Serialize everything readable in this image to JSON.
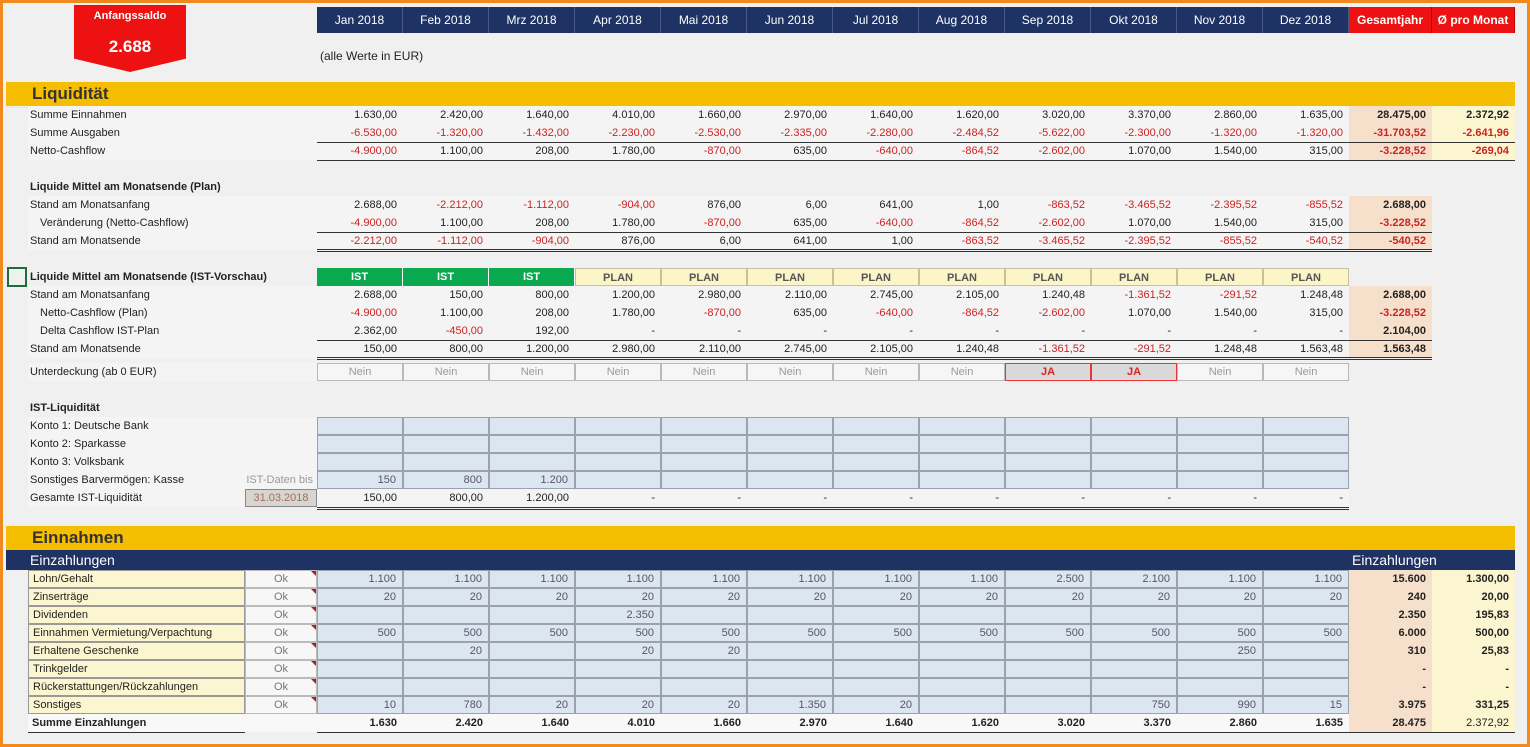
{
  "header": {
    "start_balance_label": "Anfangssaldo",
    "start_balance_value": "2.688",
    "months": [
      "Jan 2018",
      "Feb 2018",
      "Mrz 2018",
      "Apr 2018",
      "Mai 2018",
      "Jun 2018",
      "Jul 2018",
      "Aug 2018",
      "Sep 2018",
      "Okt 2018",
      "Nov 2018",
      "Dez 2018"
    ],
    "total_label": "Gesamtjahr",
    "avg_label": "Ø pro Monat",
    "unit_note": "(alle Werte in EUR)"
  },
  "colors": {
    "accent_orange": "#f08a1e",
    "band_yellow": "#f5be00",
    "navy": "#1f3264",
    "red": "#ee1111",
    "ist_green": "#0aa84f",
    "negative": "#cc2222"
  },
  "liquiditaet": {
    "title": "Liquidität",
    "rows": [
      {
        "label": "Summe Einnahmen",
        "values": [
          "1.630,00",
          "2.420,00",
          "1.640,00",
          "4.010,00",
          "1.660,00",
          "2.970,00",
          "1.640,00",
          "1.620,00",
          "3.020,00",
          "3.370,00",
          "2.860,00",
          "1.635,00"
        ],
        "total": "28.475,00",
        "avg": "2.372,92"
      },
      {
        "label": "Summe Ausgaben",
        "values": [
          "-6.530,00",
          "-1.320,00",
          "-1.432,00",
          "-2.230,00",
          "-2.530,00",
          "-2.335,00",
          "-2.280,00",
          "-2.484,52",
          "-5.622,00",
          "-2.300,00",
          "-1.320,00",
          "-1.320,00"
        ],
        "total": "-31.703,52",
        "avg": "-2.641,96"
      },
      {
        "label": "Netto-Cashflow",
        "values": [
          "-4.900,00",
          "1.100,00",
          "208,00",
          "1.780,00",
          "-870,00",
          "635,00",
          "-640,00",
          "-864,52",
          "-2.602,00",
          "1.070,00",
          "1.540,00",
          "315,00"
        ],
        "total": "-3.228,52",
        "avg": "-269,04"
      }
    ]
  },
  "plan": {
    "title": "Liquide Mittel am Monatsende (Plan)",
    "rows": [
      {
        "label": "Stand am Monatsanfang",
        "values": [
          "2.688,00",
          "-2.212,00",
          "-1.112,00",
          "-904,00",
          "876,00",
          "6,00",
          "641,00",
          "1,00",
          "-863,52",
          "-3.465,52",
          "-2.395,52",
          "-855,52"
        ],
        "total": "2.688,00"
      },
      {
        "label": "Veränderung (Netto-Cashflow)",
        "values": [
          "-4.900,00",
          "1.100,00",
          "208,00",
          "1.780,00",
          "-870,00",
          "635,00",
          "-640,00",
          "-864,52",
          "-2.602,00",
          "1.070,00",
          "1.540,00",
          "315,00"
        ],
        "total": "-3.228,52"
      },
      {
        "label": "Stand am Monatsende",
        "values": [
          "-2.212,00",
          "-1.112,00",
          "-904,00",
          "876,00",
          "6,00",
          "641,00",
          "1,00",
          "-863,52",
          "-3.465,52",
          "-2.395,52",
          "-855,52",
          "-540,52"
        ],
        "total": "-540,52"
      }
    ]
  },
  "vorschau": {
    "title": "Liquide Mittel am Monatsende (IST-Vorschau)",
    "status": [
      "IST",
      "IST",
      "IST",
      "PLAN",
      "PLAN",
      "PLAN",
      "PLAN",
      "PLAN",
      "PLAN",
      "PLAN",
      "PLAN",
      "PLAN"
    ],
    "rows": [
      {
        "label": "Stand am Monatsanfang",
        "values": [
          "2.688,00",
          "150,00",
          "800,00",
          "1.200,00",
          "2.980,00",
          "2.110,00",
          "2.745,00",
          "2.105,00",
          "1.240,48",
          "-1.361,52",
          "-291,52",
          "1.248,48"
        ],
        "total": "2.688,00"
      },
      {
        "label": "Netto-Cashflow (Plan)",
        "values": [
          "-4.900,00",
          "1.100,00",
          "208,00",
          "1.780,00",
          "-870,00",
          "635,00",
          "-640,00",
          "-864,52",
          "-2.602,00",
          "1.070,00",
          "1.540,00",
          "315,00"
        ],
        "total": "-3.228,52"
      },
      {
        "label": "Delta Cashflow IST-Plan",
        "values": [
          "2.362,00",
          "-450,00",
          "192,00",
          "-",
          "-",
          "-",
          "-",
          "-",
          "-",
          "-",
          "-",
          "-"
        ],
        "total": "2.104,00"
      },
      {
        "label": "Stand am Monatsende",
        "values": [
          "150,00",
          "800,00",
          "1.200,00",
          "2.980,00",
          "2.110,00",
          "2.745,00",
          "2.105,00",
          "1.240,48",
          "-1.361,52",
          "-291,52",
          "1.248,48",
          "1.563,48"
        ],
        "total": "1.563,48"
      }
    ],
    "shortfall_label": "Unterdeckung (ab 0  EUR)",
    "shortfall": [
      "Nein",
      "Nein",
      "Nein",
      "Nein",
      "Nein",
      "Nein",
      "Nein",
      "Nein",
      "JA",
      "JA",
      "Nein",
      "Nein"
    ]
  },
  "ist": {
    "title": "IST-Liquidität",
    "rows": [
      {
        "label": "Konto 1: Deutsche Bank",
        "values": [
          "",
          "",
          "",
          "",
          "",
          "",
          "",
          "",
          "",
          "",
          "",
          ""
        ]
      },
      {
        "label": "Konto 2: Sparkasse",
        "values": [
          "",
          "",
          "",
          "",
          "",
          "",
          "",
          "",
          "",
          "",
          "",
          ""
        ]
      },
      {
        "label": "Konto 3: Volksbank",
        "values": [
          "",
          "",
          "",
          "",
          "",
          "",
          "",
          "",
          "",
          "",
          "",
          ""
        ]
      },
      {
        "label": "Sonstiges Barvermögen: Kasse",
        "values": [
          "150",
          "800",
          "1.200",
          "",
          "",
          "",
          "",
          "",
          "",
          "",
          "",
          ""
        ]
      }
    ],
    "ist_data_label": "IST-Daten bis",
    "ist_data_date": "31.03.2018",
    "total_row": {
      "label": "Gesamte IST-Liquidität",
      "values": [
        "150,00",
        "800,00",
        "1.200,00",
        "-",
        "-",
        "-",
        "-",
        "-",
        "-",
        "-",
        "-",
        "-"
      ]
    }
  },
  "einnahmen": {
    "title": "Einnahmen",
    "subheader": "Einzahlungen",
    "subheader_right": "Einzahlungen",
    "rows": [
      {
        "label": "Lohn/Gehalt",
        "status": "Ok",
        "values": [
          "1.100",
          "1.100",
          "1.100",
          "1.100",
          "1.100",
          "1.100",
          "1.100",
          "1.100",
          "2.500",
          "2.100",
          "1.100",
          "1.100"
        ],
        "total": "15.600",
        "avg": "1.300,00"
      },
      {
        "label": "Zinserträge",
        "status": "Ok",
        "values": [
          "20",
          "20",
          "20",
          "20",
          "20",
          "20",
          "20",
          "20",
          "20",
          "20",
          "20",
          "20"
        ],
        "total": "240",
        "avg": "20,00"
      },
      {
        "label": "Dividenden",
        "status": "Ok",
        "values": [
          "",
          "",
          "",
          "2.350",
          "",
          "",
          "",
          "",
          "",
          "",
          "",
          ""
        ],
        "total": "2.350",
        "avg": "195,83"
      },
      {
        "label": "Einnahmen Vermietung/Verpachtung",
        "status": "Ok",
        "values": [
          "500",
          "500",
          "500",
          "500",
          "500",
          "500",
          "500",
          "500",
          "500",
          "500",
          "500",
          "500"
        ],
        "total": "6.000",
        "avg": "500,00"
      },
      {
        "label": "Erhaltene Geschenke",
        "status": "Ok",
        "values": [
          "",
          "20",
          "",
          "20",
          "20",
          "",
          "",
          "",
          "",
          "",
          "250",
          ""
        ],
        "total": "310",
        "avg": "25,83"
      },
      {
        "label": "Trinkgelder",
        "status": "Ok",
        "values": [
          "",
          "",
          "",
          "",
          "",
          "",
          "",
          "",
          "",
          "",
          "",
          ""
        ],
        "total": "-",
        "avg": "-"
      },
      {
        "label": "Rückerstattungen/Rückzahlungen",
        "status": "Ok",
        "values": [
          "",
          "",
          "",
          "",
          "",
          "",
          "",
          "",
          "",
          "",
          "",
          ""
        ],
        "total": "-",
        "avg": "-"
      },
      {
        "label": "Sonstiges",
        "status": "Ok",
        "values": [
          "10",
          "780",
          "20",
          "20",
          "20",
          "1.350",
          "20",
          "",
          "",
          "750",
          "990",
          "15"
        ],
        "total": "3.975",
        "avg": "331,25"
      }
    ],
    "sum_row": {
      "label": "Summe Einzahlungen",
      "values": [
        "1.630",
        "2.420",
        "1.640",
        "4.010",
        "1.660",
        "2.970",
        "1.640",
        "1.620",
        "3.020",
        "3.370",
        "2.860",
        "1.635"
      ],
      "total": "28.475",
      "avg": "2.372,92"
    }
  }
}
